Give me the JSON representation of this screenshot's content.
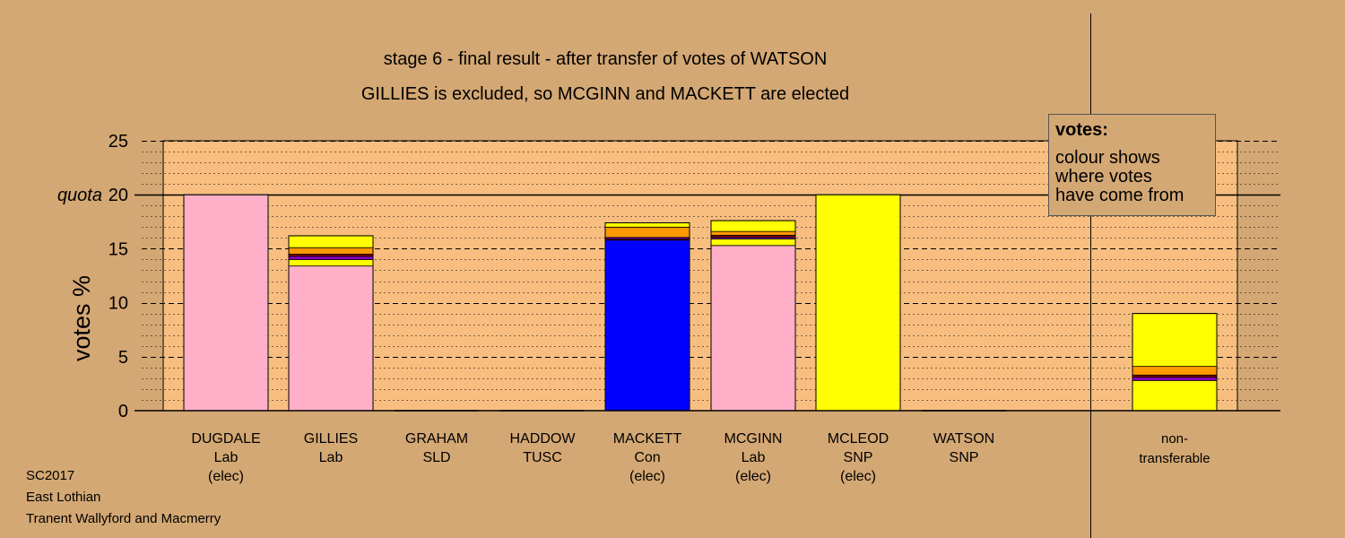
{
  "title": "stage 6 - final result - after transfer of votes of WATSON",
  "subtitle": "GILLIES is excluded, so MCGINN and MACKETT are elected",
  "legend": {
    "heading": "votes:",
    "lines": [
      "colour shows",
      "where votes",
      "have come from"
    ]
  },
  "footer": [
    "SC2017",
    "East Lothian",
    "Tranent Wallyford and Macmerry"
  ],
  "colors": {
    "background": "#d4a874",
    "plot_area": "#f7be80",
    "Lab": "#ffb0c8",
    "SNP": "#ffff00",
    "Con": "#0000ff",
    "SLD": "#ff9900",
    "TUSC": "#8b0000",
    "Other": "#8a00c8"
  },
  "chart_data": {
    "type": "bar",
    "stacked": true,
    "ylabel": "votes %",
    "ylim": [
      0,
      25
    ],
    "yticks": [
      0,
      5,
      10,
      15,
      20,
      25
    ],
    "quota": 20,
    "quota_label": "quota",
    "categories": [
      {
        "name": "DUGDALE",
        "party": "Lab",
        "status": "(elec)"
      },
      {
        "name": "GILLIES",
        "party": "Lab",
        "status": ""
      },
      {
        "name": "GRAHAM",
        "party": "SLD",
        "status": ""
      },
      {
        "name": "HADDOW",
        "party": "TUSC",
        "status": ""
      },
      {
        "name": "MACKETT",
        "party": "Con",
        "status": "(elec)"
      },
      {
        "name": "MCGINN",
        "party": "Lab",
        "status": "(elec)"
      },
      {
        "name": "MCLEOD",
        "party": "SNP",
        "status": "(elec)"
      },
      {
        "name": "WATSON",
        "party": "SNP",
        "status": ""
      }
    ],
    "extra_category": {
      "line1": "non-",
      "line2": "transferable"
    },
    "bars": [
      {
        "category": "DUGDALE",
        "segments": [
          {
            "source": "Lab",
            "value": 20.0
          }
        ]
      },
      {
        "category": "GILLIES",
        "segments": [
          {
            "source": "Lab",
            "value": 13.4
          },
          {
            "source": "SNP",
            "value": 0.6
          },
          {
            "source": "Other",
            "value": 0.3
          },
          {
            "source": "TUSC",
            "value": 0.2
          },
          {
            "source": "SLD",
            "value": 0.6
          },
          {
            "source": "SNP",
            "value": 1.1
          }
        ]
      },
      {
        "category": "GRAHAM",
        "segments": []
      },
      {
        "category": "HADDOW",
        "segments": []
      },
      {
        "category": "MACKETT",
        "segments": [
          {
            "source": "Con",
            "value": 15.8
          },
          {
            "source": "TUSC",
            "value": 0.1
          },
          {
            "source": "Other",
            "value": 0.15
          },
          {
            "source": "SLD",
            "value": 0.95
          },
          {
            "source": "SNP",
            "value": 0.4
          }
        ]
      },
      {
        "category": "MCGINN",
        "segments": [
          {
            "source": "Lab",
            "value": 15.3
          },
          {
            "source": "SNP",
            "value": 0.6
          },
          {
            "source": "Other",
            "value": 0.15
          },
          {
            "source": "TUSC",
            "value": 0.2
          },
          {
            "source": "SLD",
            "value": 0.35
          },
          {
            "source": "SNP",
            "value": 1.0
          }
        ]
      },
      {
        "category": "MCLEOD",
        "segments": [
          {
            "source": "SNP",
            "value": 20.0
          }
        ]
      },
      {
        "category": "WATSON",
        "segments": []
      },
      {
        "category": "non-transferable",
        "segments": [
          {
            "source": "SNP",
            "value": 2.8
          },
          {
            "source": "Other",
            "value": 0.3
          },
          {
            "source": "TUSC",
            "value": 0.2
          },
          {
            "source": "SLD",
            "value": 0.8
          },
          {
            "source": "SNP",
            "value": 4.9
          }
        ]
      }
    ]
  }
}
